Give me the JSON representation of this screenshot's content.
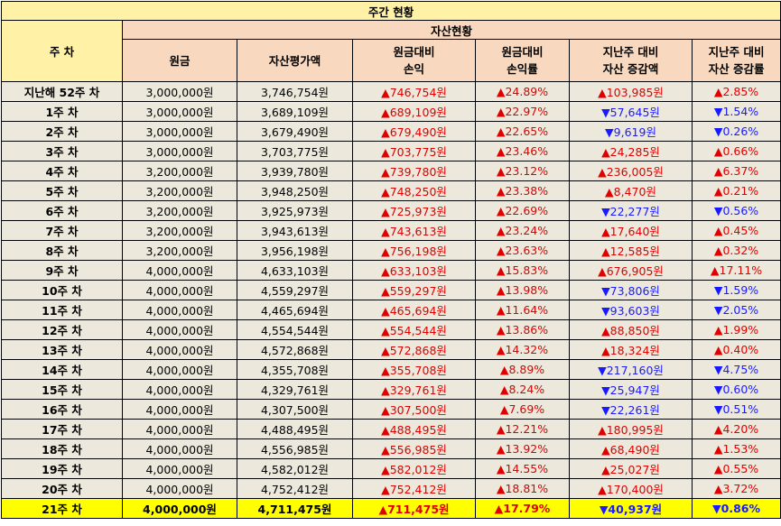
{
  "title": "주간 현황",
  "header": {
    "week": "주 차",
    "group": "자산현황",
    "columns": [
      {
        "line1": "원금",
        "line2": ""
      },
      {
        "line1": "자산평가액",
        "line2": ""
      },
      {
        "line1": "원금대비",
        "line2": "손익"
      },
      {
        "line1": "원금대비",
        "line2": "손익률"
      },
      {
        "line1": "지난주 대비",
        "line2": "자산 증감액"
      },
      {
        "line1": "지난주 대비",
        "line2": "자산 증감률"
      }
    ]
  },
  "colors": {
    "up": "#e00000",
    "down": "#1a1aff",
    "highlight": "#ffff00",
    "title_bg": "#fff2a6",
    "header_bg": "#f8d9bf",
    "row_bg": "#ece9dc"
  },
  "rows": [
    {
      "week": "지난해 52주 차",
      "principal": "3,000,000원",
      "value": "3,746,754원",
      "pnl": "▲746,754원",
      "pnl_dir": "up",
      "pnl_rate": "▲24.89%",
      "rate_dir": "up",
      "delta": "▲103,985원",
      "delta_dir": "up",
      "delta_rate": "▲2.85%",
      "drate_dir": "up"
    },
    {
      "week": "1주 차",
      "principal": "3,000,000원",
      "value": "3,689,109원",
      "pnl": "▲689,109원",
      "pnl_dir": "up",
      "pnl_rate": "▲22.97%",
      "rate_dir": "up",
      "delta": "▼57,645원",
      "delta_dir": "down",
      "delta_rate": "▼1.54%",
      "drate_dir": "down"
    },
    {
      "week": "2주 차",
      "principal": "3,000,000원",
      "value": "3,679,490원",
      "pnl": "▲679,490원",
      "pnl_dir": "up",
      "pnl_rate": "▲22.65%",
      "rate_dir": "up",
      "delta": "▼9,619원",
      "delta_dir": "down",
      "delta_rate": "▼0.26%",
      "drate_dir": "down"
    },
    {
      "week": "3주 차",
      "principal": "3,000,000원",
      "value": "3,703,775원",
      "pnl": "▲703,775원",
      "pnl_dir": "up",
      "pnl_rate": "▲23.46%",
      "rate_dir": "up",
      "delta": "▲24,285원",
      "delta_dir": "up",
      "delta_rate": "▲0.66%",
      "drate_dir": "up"
    },
    {
      "week": "4주 차",
      "principal": "3,200,000원",
      "value": "3,939,780원",
      "pnl": "▲739,780원",
      "pnl_dir": "up",
      "pnl_rate": "▲23.12%",
      "rate_dir": "up",
      "delta": "▲236,005원",
      "delta_dir": "up",
      "delta_rate": "▲6.37%",
      "drate_dir": "up"
    },
    {
      "week": "5주 차",
      "principal": "3,200,000원",
      "value": "3,948,250원",
      "pnl": "▲748,250원",
      "pnl_dir": "up",
      "pnl_rate": "▲23.38%",
      "rate_dir": "up",
      "delta": "▲8,470원",
      "delta_dir": "up",
      "delta_rate": "▲0.21%",
      "drate_dir": "up"
    },
    {
      "week": "6주 차",
      "principal": "3,200,000원",
      "value": "3,925,973원",
      "pnl": "▲725,973원",
      "pnl_dir": "up",
      "pnl_rate": "▲22.69%",
      "rate_dir": "up",
      "delta": "▼22,277원",
      "delta_dir": "down",
      "delta_rate": "▼0.56%",
      "drate_dir": "down"
    },
    {
      "week": "7주 차",
      "principal": "3,200,000원",
      "value": "3,943,613원",
      "pnl": "▲743,613원",
      "pnl_dir": "up",
      "pnl_rate": "▲23.24%",
      "rate_dir": "up",
      "delta": "▲17,640원",
      "delta_dir": "up",
      "delta_rate": "▲0.45%",
      "drate_dir": "up"
    },
    {
      "week": "8주 차",
      "principal": "3,200,000원",
      "value": "3,956,198원",
      "pnl": "▲756,198원",
      "pnl_dir": "up",
      "pnl_rate": "▲23.63%",
      "rate_dir": "up",
      "delta": "▲12,585원",
      "delta_dir": "up",
      "delta_rate": "▲0.32%",
      "drate_dir": "up"
    },
    {
      "week": "9주 차",
      "principal": "4,000,000원",
      "value": "4,633,103원",
      "pnl": "▲633,103원",
      "pnl_dir": "up",
      "pnl_rate": "▲15.83%",
      "rate_dir": "up",
      "delta": "▲676,905원",
      "delta_dir": "up",
      "delta_rate": "▲17.11%",
      "drate_dir": "up"
    },
    {
      "week": "10주 차",
      "principal": "4,000,000원",
      "value": "4,559,297원",
      "pnl": "▲559,297원",
      "pnl_dir": "up",
      "pnl_rate": "▲13.98%",
      "rate_dir": "up",
      "delta": "▼73,806원",
      "delta_dir": "down",
      "delta_rate": "▼1.59%",
      "drate_dir": "down"
    },
    {
      "week": "11주 차",
      "principal": "4,000,000원",
      "value": "4,465,694원",
      "pnl": "▲465,694원",
      "pnl_dir": "up",
      "pnl_rate": "▲11.64%",
      "rate_dir": "up",
      "delta": "▼93,603원",
      "delta_dir": "down",
      "delta_rate": "▼2.05%",
      "drate_dir": "down"
    },
    {
      "week": "12주 차",
      "principal": "4,000,000원",
      "value": "4,554,544원",
      "pnl": "▲554,544원",
      "pnl_dir": "up",
      "pnl_rate": "▲13.86%",
      "rate_dir": "up",
      "delta": "▲88,850원",
      "delta_dir": "up",
      "delta_rate": "▲1.99%",
      "drate_dir": "up"
    },
    {
      "week": "13주 차",
      "principal": "4,000,000원",
      "value": "4,572,868원",
      "pnl": "▲572,868원",
      "pnl_dir": "up",
      "pnl_rate": "▲14.32%",
      "rate_dir": "up",
      "delta": "▲18,324원",
      "delta_dir": "up",
      "delta_rate": "▲0.40%",
      "drate_dir": "up"
    },
    {
      "week": "14주 차",
      "principal": "4,000,000원",
      "value": "4,355,708원",
      "pnl": "▲355,708원",
      "pnl_dir": "up",
      "pnl_rate": "▲8.89%",
      "rate_dir": "up",
      "delta": "▼217,160원",
      "delta_dir": "down",
      "delta_rate": "▼4.75%",
      "drate_dir": "down"
    },
    {
      "week": "15주 차",
      "principal": "4,000,000원",
      "value": "4,329,761원",
      "pnl": "▲329,761원",
      "pnl_dir": "up",
      "pnl_rate": "▲8.24%",
      "rate_dir": "up",
      "delta": "▼25,947원",
      "delta_dir": "down",
      "delta_rate": "▼0.60%",
      "drate_dir": "down"
    },
    {
      "week": "16주 차",
      "principal": "4,000,000원",
      "value": "4,307,500원",
      "pnl": "▲307,500원",
      "pnl_dir": "up",
      "pnl_rate": "▲7.69%",
      "rate_dir": "up",
      "delta": "▼22,261원",
      "delta_dir": "down",
      "delta_rate": "▼0.51%",
      "drate_dir": "down"
    },
    {
      "week": "17주 차",
      "principal": "4,000,000원",
      "value": "4,488,495원",
      "pnl": "▲488,495원",
      "pnl_dir": "up",
      "pnl_rate": "▲12.21%",
      "rate_dir": "up",
      "delta": "▲180,995원",
      "delta_dir": "up",
      "delta_rate": "▲4.20%",
      "drate_dir": "up"
    },
    {
      "week": "18주 차",
      "principal": "4,000,000원",
      "value": "4,556,985원",
      "pnl": "▲556,985원",
      "pnl_dir": "up",
      "pnl_rate": "▲13.92%",
      "rate_dir": "up",
      "delta": "▲68,490원",
      "delta_dir": "up",
      "delta_rate": "▲1.53%",
      "drate_dir": "up"
    },
    {
      "week": "19주 차",
      "principal": "4,000,000원",
      "value": "4,582,012원",
      "pnl": "▲582,012원",
      "pnl_dir": "up",
      "pnl_rate": "▲14.55%",
      "rate_dir": "up",
      "delta": "▲25,027원",
      "delta_dir": "up",
      "delta_rate": "▲0.55%",
      "drate_dir": "up"
    },
    {
      "week": "20주 차",
      "principal": "4,000,000원",
      "value": "4,752,412원",
      "pnl": "▲752,412원",
      "pnl_dir": "up",
      "pnl_rate": "▲18.81%",
      "rate_dir": "up",
      "delta": "▲170,400원",
      "delta_dir": "up",
      "delta_rate": "▲3.72%",
      "drate_dir": "up"
    },
    {
      "week": "21주 차",
      "principal": "4,000,000원",
      "value": "4,711,475원",
      "pnl": "▲711,475원",
      "pnl_dir": "up",
      "pnl_rate": "▲17.79%",
      "rate_dir": "up",
      "delta": "▼40,937원",
      "delta_dir": "down",
      "delta_rate": "▼0.86%",
      "drate_dir": "down",
      "highlight": true
    }
  ]
}
